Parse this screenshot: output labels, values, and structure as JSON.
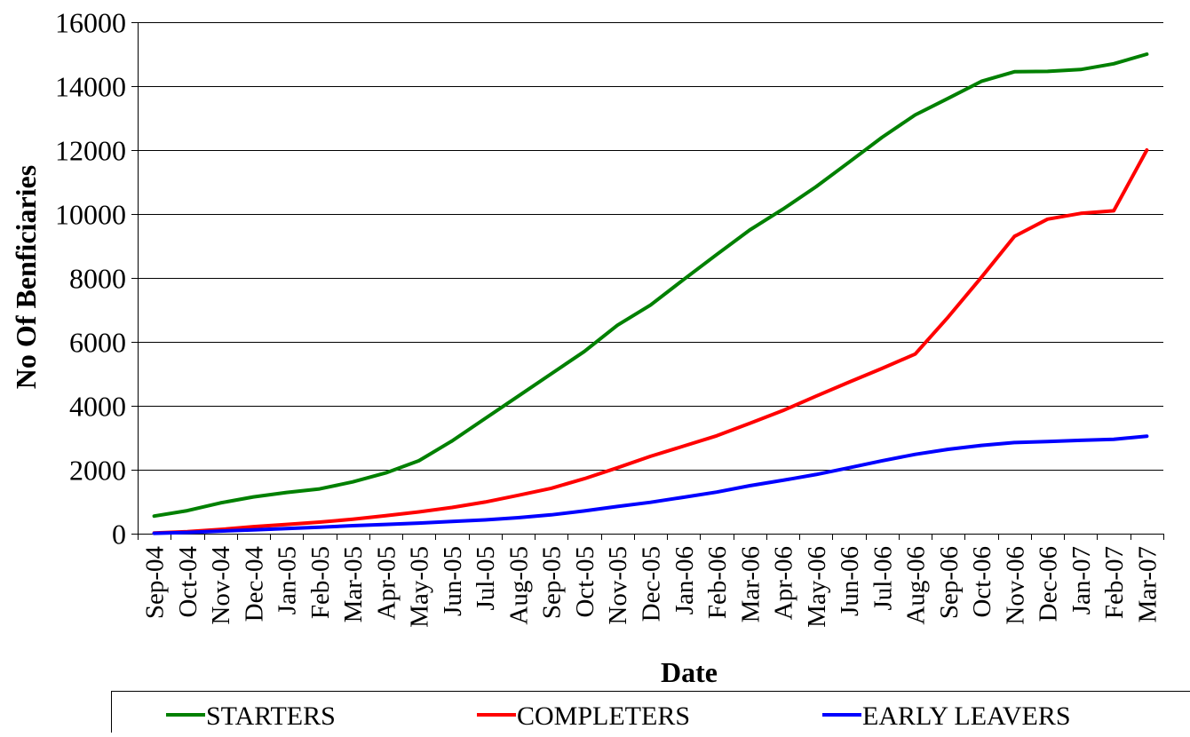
{
  "chart_data": {
    "type": "line",
    "title": "",
    "xlabel": "Date",
    "ylabel": "No Of Benficiaries",
    "ylim": [
      0,
      16000
    ],
    "yticks": [
      0,
      2000,
      4000,
      6000,
      8000,
      10000,
      12000,
      14000,
      16000
    ],
    "grid": true,
    "legend_position": "bottom",
    "categories": [
      "Sep-04",
      "Oct-04",
      "Nov-04",
      "Dec-04",
      "Jan-05",
      "Feb-05",
      "Mar-05",
      "Apr-05",
      "May-05",
      "Jun-05",
      "Jul-05",
      "Aug-05",
      "Sep-05",
      "Oct-05",
      "Nov-05",
      "Dec-05",
      "Jan-06",
      "Feb-06",
      "Mar-06",
      "Apr-06",
      "May-06",
      "Jun-06",
      "Jul-06",
      "Aug-06",
      "Sep-06",
      "Oct-06",
      "Nov-06",
      "Dec-06",
      "Jan-07",
      "Feb-07",
      "Mar-07"
    ],
    "series": [
      {
        "name": "STARTERS",
        "color": "#008000",
        "values": [
          550,
          720,
          960,
          1150,
          1290,
          1400,
          1620,
          1900,
          2280,
          2900,
          3600,
          4300,
          5000,
          5700,
          6520,
          7150,
          7950,
          8730,
          9500,
          10150,
          10850,
          11620,
          12400,
          13100,
          13620,
          14150,
          14450,
          14460,
          14520,
          14700,
          15000
        ]
      },
      {
        "name": "COMPLETERS",
        "color": "#ff0000",
        "values": [
          20,
          60,
          130,
          220,
          290,
          360,
          450,
          560,
          680,
          820,
          990,
          1200,
          1420,
          1720,
          2060,
          2420,
          2740,
          3060,
          3450,
          3850,
          4300,
          4740,
          5170,
          5620,
          6780,
          8020,
          9300,
          9840,
          10020,
          10100,
          12000
        ]
      },
      {
        "name": "EARLY LEAVERS",
        "color": "#0000ff",
        "values": [
          10,
          40,
          80,
          120,
          160,
          200,
          250,
          290,
          330,
          380,
          430,
          500,
          590,
          710,
          850,
          980,
          1140,
          1300,
          1500,
          1670,
          1850,
          2060,
          2280,
          2480,
          2640,
          2760,
          2850,
          2880,
          2920,
          2950,
          3050
        ]
      }
    ]
  }
}
